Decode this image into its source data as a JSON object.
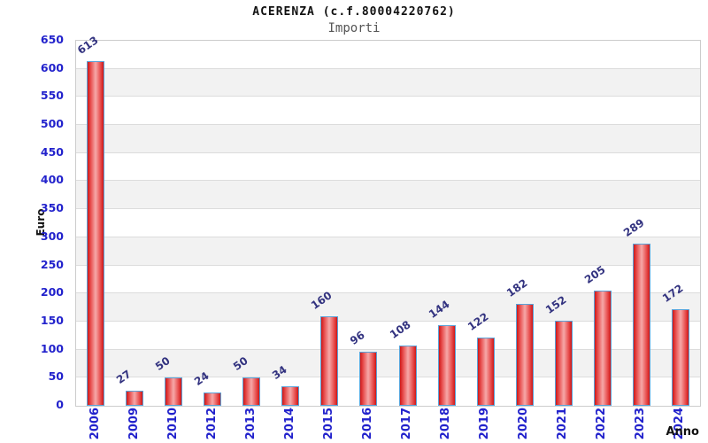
{
  "chart_data": {
    "type": "bar",
    "title": "ACERENZA (c.f.80004220762)",
    "subtitle": "Importi",
    "xlabel": "Anno",
    "ylabel": "Euro",
    "categories": [
      "2006",
      "2009",
      "2010",
      "2012",
      "2013",
      "2014",
      "2015",
      "2016",
      "2017",
      "2018",
      "2019",
      "2020",
      "2021",
      "2022",
      "2023",
      "2024"
    ],
    "values": [
      613,
      27,
      50,
      24,
      50,
      34,
      160,
      96,
      108,
      144,
      122,
      182,
      152,
      205,
      289,
      172
    ],
    "ylim": [
      0,
      650
    ],
    "ytick_step": 50,
    "legend": "none",
    "grid": "horizontal-alternating-bands",
    "colors": {
      "bar_edge": "#cf1717",
      "bar_mid": "#e85050",
      "bar_center": "#f6a8a8",
      "bar_border": "#5aa2d8",
      "tick_label": "#2222cc",
      "value_label": "#333380",
      "band_gray": "#f2f2f2",
      "band_white": "#ffffff",
      "gridline": "#dcdcdc",
      "plot_border": "#cccccc",
      "title_color": "#111111",
      "subtitle_color": "#555555"
    }
  }
}
